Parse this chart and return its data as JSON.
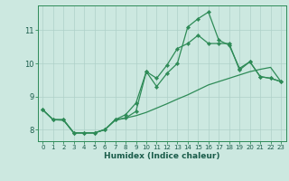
{
  "xlabel": "Humidex (Indice chaleur)",
  "x_values": [
    0,
    1,
    2,
    3,
    4,
    5,
    6,
    7,
    8,
    9,
    10,
    11,
    12,
    13,
    14,
    15,
    16,
    17,
    18,
    19,
    20,
    21,
    22,
    23
  ],
  "curve_main": [
    8.6,
    8.3,
    8.3,
    7.9,
    7.9,
    7.9,
    8.0,
    8.3,
    8.35,
    8.55,
    9.75,
    9.3,
    9.7,
    10.0,
    11.1,
    11.35,
    11.55,
    10.7,
    10.55,
    9.85,
    10.05,
    9.6,
    9.55,
    9.45
  ],
  "curve_upper": [
    8.6,
    8.3,
    8.3,
    7.9,
    7.9,
    7.9,
    8.0,
    8.3,
    8.45,
    8.8,
    9.75,
    9.55,
    9.95,
    10.45,
    10.6,
    10.85,
    10.6,
    10.6,
    10.6,
    9.8,
    10.05,
    9.6,
    9.55,
    9.45
  ],
  "curve_lower": [
    8.6,
    8.3,
    8.28,
    7.9,
    7.9,
    7.9,
    8.0,
    8.28,
    8.35,
    8.42,
    8.52,
    8.65,
    8.78,
    8.92,
    9.05,
    9.2,
    9.35,
    9.45,
    9.55,
    9.65,
    9.75,
    9.82,
    9.88,
    9.45
  ],
  "line_color": "#2e8b57",
  "bg_color": "#cce8e0",
  "grid_color": "#aed0c8",
  "ylim": [
    7.65,
    11.75
  ],
  "yticks": [
    8,
    9,
    10,
    11
  ],
  "xticks": [
    0,
    1,
    2,
    3,
    4,
    5,
    6,
    7,
    8,
    9,
    10,
    11,
    12,
    13,
    14,
    15,
    16,
    17,
    18,
    19,
    20,
    21,
    22,
    23
  ]
}
